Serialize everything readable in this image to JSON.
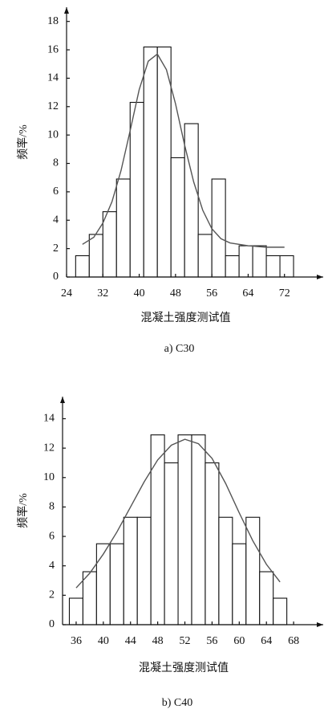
{
  "chart_data": [
    {
      "type": "histogram",
      "caption": "a) C30",
      "xlabel": "混凝土强度测试值",
      "ylabel": "频率/%",
      "bins": [
        26,
        29,
        32,
        35,
        38,
        41,
        44,
        47,
        50,
        53,
        56,
        59,
        62,
        65,
        68,
        71,
        74
      ],
      "values": [
        1.5,
        3.0,
        4.6,
        6.9,
        12.3,
        16.2,
        16.2,
        8.4,
        10.8,
        3.0,
        6.9,
        1.5,
        2.2,
        2.2,
        1.5,
        1.5
      ],
      "color": "#111111",
      "curve": {
        "color": "#555555",
        "x": [
          27.5,
          30,
          32,
          34,
          36,
          38,
          40,
          42,
          44,
          46,
          48,
          50,
          52,
          54,
          56,
          58,
          60,
          64,
          68,
          72
        ],
        "values": [
          2.3,
          2.8,
          3.8,
          5.3,
          7.5,
          10.3,
          13.2,
          15.2,
          15.7,
          14.6,
          12.2,
          9.3,
          6.7,
          4.7,
          3.4,
          2.7,
          2.4,
          2.2,
          2.1,
          2.1
        ]
      },
      "xlim": [
        24,
        80
      ],
      "ylim": [
        0,
        19
      ],
      "xticks": [
        24,
        32,
        40,
        48,
        56,
        64,
        72
      ],
      "yticks": [
        0,
        2,
        4,
        6,
        8,
        10,
        12,
        14,
        16,
        18
      ]
    },
    {
      "type": "histogram",
      "caption": "b) C40",
      "xlabel": "混凝土强度测试值",
      "ylabel": "频率/%",
      "bins": [
        35,
        37,
        39,
        41,
        43,
        45,
        47,
        49,
        51,
        53,
        55,
        57,
        59,
        61,
        63,
        65,
        67
      ],
      "values": [
        1.8,
        3.6,
        5.5,
        5.5,
        7.3,
        7.3,
        12.9,
        11.0,
        12.9,
        12.9,
        11.0,
        7.3,
        5.5,
        7.3,
        3.6,
        1.8
      ],
      "color": "#111111",
      "curve": {
        "color": "#555555",
        "x": [
          36,
          38,
          40,
          42,
          44,
          46,
          48,
          50,
          52,
          54,
          56,
          58,
          60,
          62,
          64,
          66
        ],
        "values": [
          2.5,
          3.5,
          4.8,
          6.3,
          8.0,
          9.7,
          11.2,
          12.2,
          12.6,
          12.3,
          11.3,
          9.6,
          7.6,
          5.7,
          4.1,
          2.9
        ]
      },
      "xlim": [
        34,
        72
      ],
      "ylim": [
        0,
        15.5
      ],
      "xticks": [
        36,
        40,
        44,
        48,
        52,
        56,
        60,
        64,
        68
      ],
      "yticks": [
        0,
        2,
        4,
        6,
        8,
        10,
        12,
        14
      ]
    }
  ]
}
